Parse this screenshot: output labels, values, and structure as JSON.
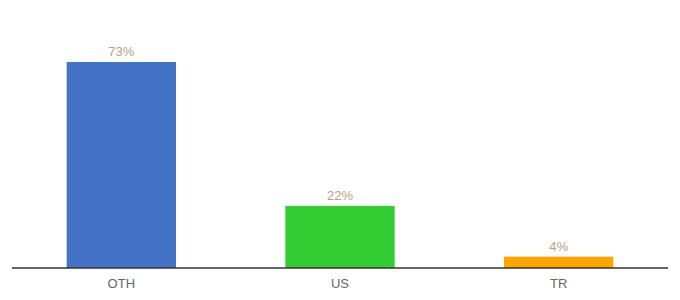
{
  "chart_data": {
    "type": "bar",
    "categories": [
      "OTH",
      "US",
      "TR"
    ],
    "values": [
      73,
      22,
      4
    ],
    "value_labels": [
      "73%",
      "22%",
      "4%"
    ],
    "colors": [
      "#4472C4",
      "#33CC33",
      "#FFA500"
    ],
    "ylim": [
      0,
      90
    ],
    "data_labels": true,
    "tick_labels": "x"
  }
}
